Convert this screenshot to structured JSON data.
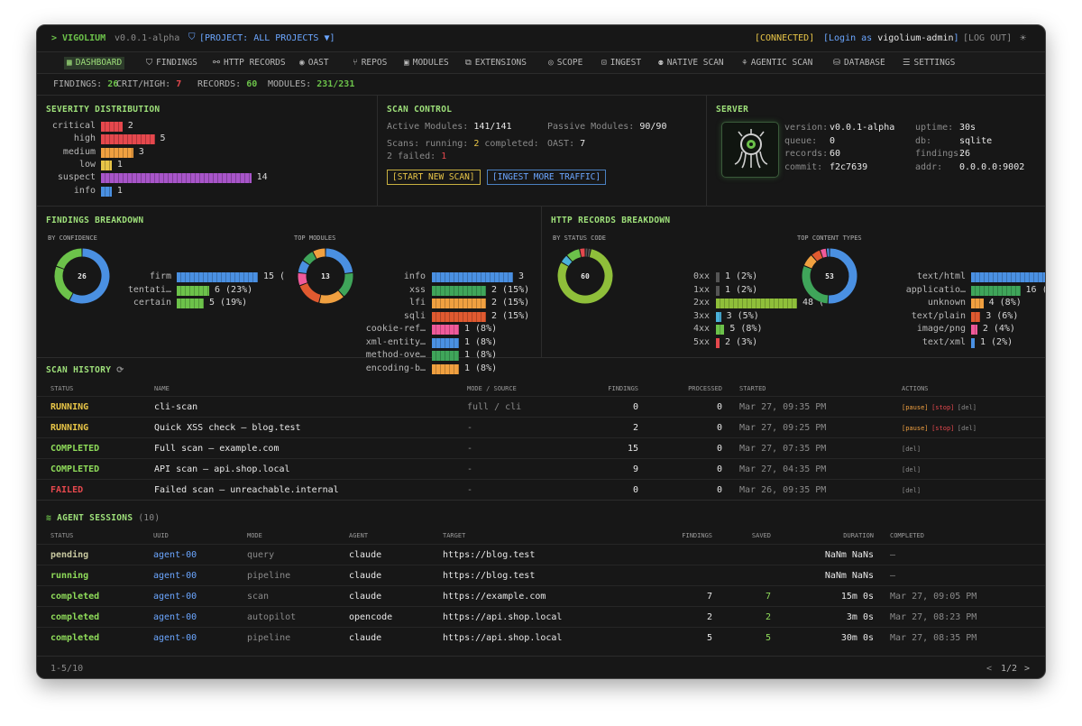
{
  "app": {
    "prompt": "> VIGOLIUM",
    "version": "v0.0.1-alpha",
    "project": "[PROJECT: ALL PROJECTS ▼]",
    "connected": "[CONNECTED]",
    "login_prefix": "[Login as ",
    "login_user": "vigolium-admin",
    "login_suffix": "]",
    "logout": "[LOG OUT]"
  },
  "nav": [
    "DASHBOARD",
    "FINDINGS",
    "HTTP RECORDS",
    "OAST",
    "REPOS",
    "MODULES",
    "EXTENSIONS",
    "SCOPE",
    "INGEST",
    "NATIVE SCAN",
    "AGENTIC SCAN",
    "DATABASE",
    "SETTINGS"
  ],
  "stats": {
    "findings_label": "FINDINGS:",
    "findings": "26",
    "crit_label": "CRIT/HIGH:",
    "crit": "7",
    "records_label": "RECORDS:",
    "records": "60",
    "modules_label": "MODULES:",
    "modules": "231/231"
  },
  "severity": {
    "title": "SEVERITY DISTRIBUTION",
    "items": [
      {
        "label": "critical",
        "value": 2,
        "color": "#e5484d"
      },
      {
        "label": "high",
        "value": 5,
        "color": "#e5484d"
      },
      {
        "label": "medium",
        "value": 3,
        "color": "#f0a040"
      },
      {
        "label": "low",
        "value": 1,
        "color": "#e8c547"
      },
      {
        "label": "suspect",
        "value": 14,
        "color": "#a855c9"
      },
      {
        "label": "info",
        "value": 1,
        "color": "#4a90e2"
      }
    ]
  },
  "scan_control": {
    "title": "SCAN CONTROL",
    "active_label": "Active Modules:",
    "active": "141/141",
    "passive_label": "Passive Modules:",
    "passive": "90/90",
    "scans_label": "Scans: running:",
    "running": "2",
    "completed_label": "completed:",
    "oast_label": "OAST:",
    "oast": "7",
    "failed_label": "2 failed:",
    "failed": "1",
    "start_btn": "[START NEW SCAN]",
    "ingest_btn": "[INGEST MORE TRAFFIC]"
  },
  "server": {
    "title": "SERVER",
    "rows": [
      {
        "k": "version:",
        "v": "v0.0.1-alpha"
      },
      {
        "k": "queue:",
        "v": "0"
      },
      {
        "k": "records:",
        "v": "60"
      },
      {
        "k": "commit:",
        "v": "f2c7639"
      }
    ],
    "rows2": [
      {
        "k": "uptime:",
        "v": "30s"
      },
      {
        "k": "db:",
        "v": "sqlite"
      },
      {
        "k": "findings:",
        "v": "26"
      },
      {
        "k": "addr:",
        "v": "0.0.0.0:9002"
      }
    ]
  },
  "findings_breakdown": {
    "title": "FINDINGS BREAKDOWN",
    "by_conf_label": "BY CONFIDENCE",
    "conf_total": "26",
    "conf": [
      {
        "label": "firm",
        "value": 15,
        "text": "15 (",
        "color": "#4a90e2"
      },
      {
        "label": "tentati…",
        "value": 6,
        "text": "6 (23%)",
        "color": "#6cc24a"
      },
      {
        "label": "certain",
        "value": 5,
        "text": "5 (19%)",
        "color": "#6cc24a"
      }
    ],
    "top_modules_label": "TOP MODULES",
    "mod_total": "13",
    "modules": [
      {
        "label": "info",
        "value": 3,
        "text": "3",
        "color": "#4a90e2"
      },
      {
        "label": "xss",
        "value": 2,
        "text": "2 (15%)",
        "color": "#3fa55a"
      },
      {
        "label": "lfi",
        "value": 2,
        "text": "2 (15%)",
        "color": "#f0a040"
      },
      {
        "label": "sqli",
        "value": 2,
        "text": "2 (15%)",
        "color": "#e05a30"
      },
      {
        "label": "cookie-ref…",
        "value": 1,
        "text": "1 (8%)",
        "color": "#f05a9a"
      },
      {
        "label": "xml-entity…",
        "value": 1,
        "text": "1 (8%)",
        "color": "#4a90e2"
      },
      {
        "label": "method-ove…",
        "value": 1,
        "text": "1 (8%)",
        "color": "#3fa55a"
      },
      {
        "label": "encoding-b…",
        "value": 1,
        "text": "1 (8%)",
        "color": "#f0a040"
      }
    ]
  },
  "http_breakdown": {
    "title": "HTTP RECORDS BREAKDOWN",
    "by_status_label": "BY STATUS CODE",
    "status_total": "60",
    "status": [
      {
        "label": "0xx",
        "value": 1,
        "text": "1 (2%)",
        "color": "#555555"
      },
      {
        "label": "1xx",
        "value": 1,
        "text": "1 (2%)",
        "color": "#555555"
      },
      {
        "label": "2xx",
        "value": 48,
        "text": "48 (",
        "color": "#8fbf3a"
      },
      {
        "label": "3xx",
        "value": 3,
        "text": "3 (5%)",
        "color": "#4ab0d9"
      },
      {
        "label": "4xx",
        "value": 5,
        "text": "5 (8%)",
        "color": "#6cc24a"
      },
      {
        "label": "5xx",
        "value": 2,
        "text": "2 (3%)",
        "color": "#e5484d"
      }
    ],
    "content_label": "TOP CONTENT TYPES",
    "content_total": "53",
    "content": [
      {
        "label": "text/html",
        "value": 27,
        "text": "27",
        "color": "#4a90e2"
      },
      {
        "label": "applicatio…",
        "value": 16,
        "text": "16 (30%)",
        "color": "#3fa55a"
      },
      {
        "label": "unknown",
        "value": 4,
        "text": "4 (8%)",
        "color": "#f0a040"
      },
      {
        "label": "text/plain",
        "value": 3,
        "text": "3 (6%)",
        "color": "#e05a30"
      },
      {
        "label": "image/png",
        "value": 2,
        "text": "2 (4%)",
        "color": "#f05a9a"
      },
      {
        "label": "text/xml",
        "value": 1,
        "text": "1 (2%)",
        "color": "#4a90e2"
      }
    ]
  },
  "scan_history": {
    "title": "SCAN HISTORY",
    "headers": [
      "STATUS",
      "NAME",
      "MODE / SOURCE",
      "FINDINGS",
      "PROCESSED",
      "STARTED",
      "ACTIONS"
    ],
    "rows": [
      {
        "status": "RUNNING",
        "name": "cli-scan",
        "mode": "full / cli",
        "findings": "0",
        "processed": "0",
        "started": "Mar 27, 09:35 PM",
        "actions": [
          "[pause]",
          "[stop]",
          "[del]"
        ]
      },
      {
        "status": "RUNNING",
        "name": "Quick XSS check — blog.test",
        "mode": "-",
        "findings": "2",
        "processed": "0",
        "started": "Mar 27, 09:25 PM",
        "actions": [
          "[pause]",
          "[stop]",
          "[del]"
        ]
      },
      {
        "status": "COMPLETED",
        "name": "Full scan — example.com",
        "mode": "-",
        "findings": "15",
        "processed": "0",
        "started": "Mar 27, 07:35 PM",
        "actions": [
          "[del]"
        ]
      },
      {
        "status": "COMPLETED",
        "name": "API scan — api.shop.local",
        "mode": "-",
        "findings": "9",
        "processed": "0",
        "started": "Mar 27, 04:35 PM",
        "actions": [
          "[del]"
        ]
      },
      {
        "status": "FAILED",
        "name": "Failed scan — unreachable.internal",
        "mode": "-",
        "findings": "0",
        "processed": "0",
        "started": "Mar 26, 09:35 PM",
        "actions": [
          "[del]"
        ]
      }
    ]
  },
  "agent_sessions": {
    "title": "AGENT SESSIONS",
    "count": "(10)",
    "headers": [
      "STATUS",
      "UUID",
      "MODE",
      "AGENT",
      "TARGET",
      "FINDINGS",
      "SAVED",
      "DURATION",
      "COMPLETED"
    ],
    "rows": [
      {
        "status": "pending",
        "uuid": "agent-00",
        "mode": "query",
        "agent": "claude",
        "target": "https://blog.test",
        "findings": "",
        "saved": "",
        "duration": "NaNm NaNs",
        "completed": "—"
      },
      {
        "status": "running",
        "uuid": "agent-00",
        "mode": "pipeline",
        "agent": "claude",
        "target": "https://blog.test",
        "findings": "",
        "saved": "",
        "duration": "NaNm NaNs",
        "completed": "—"
      },
      {
        "status": "completed",
        "uuid": "agent-00",
        "mode": "scan",
        "agent": "claude",
        "target": "https://example.com",
        "findings": "7",
        "saved": "7",
        "duration": "15m 0s",
        "completed": "Mar 27, 09:05 PM"
      },
      {
        "status": "completed",
        "uuid": "agent-00",
        "mode": "autopilot",
        "agent": "opencode",
        "target": "https://api.shop.local",
        "findings": "2",
        "saved": "2",
        "duration": "3m 0s",
        "completed": "Mar 27, 08:23 PM"
      },
      {
        "status": "completed",
        "uuid": "agent-00",
        "mode": "pipeline",
        "agent": "claude",
        "target": "https://api.shop.local",
        "findings": "5",
        "saved": "5",
        "duration": "30m 0s",
        "completed": "Mar 27, 08:35 PM"
      }
    ],
    "pager": "1-5/10",
    "page": "1/2",
    "prev": "<",
    "next": ">"
  }
}
